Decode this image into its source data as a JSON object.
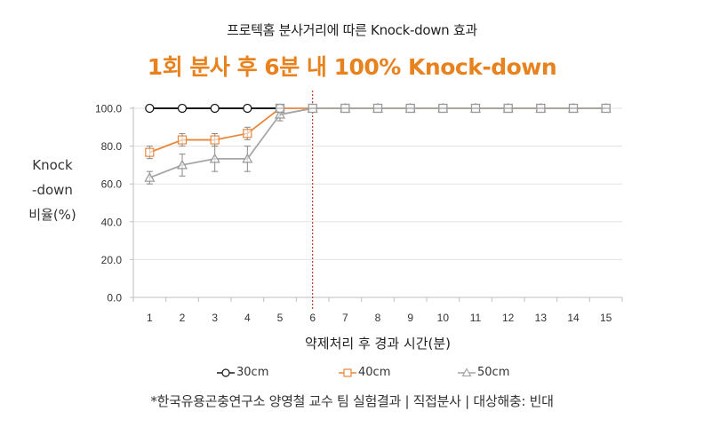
{
  "header": {
    "subtitle": "프로텍홈 분사거리에 따른 Knock-down 효과",
    "title": "1회 분사 후 6분 내 100% Knock-down"
  },
  "footnote": "*한국유용곤충연구소 양영철 교수 팀 실험결과 | 직접분사 | 대상해충: 빈대",
  "colors": {
    "accent": "#E8821E",
    "series_30cm": "#1a1a1a",
    "series_40cm": "#E8873A",
    "series_50cm": "#A6A6A6",
    "marker_gray": "#999999",
    "reference_line": "#C0392B",
    "grid": "#e3e3e3",
    "axis": "#bfbfbf"
  },
  "chart_data": {
    "type": "line",
    "title": "1회 분사 후 6분 내 100% Knock-down",
    "subtitle": "프로텍홈 분사거리에 따른 Knock-down 효과",
    "xlabel": "약제처리 후 경과 시간(분)",
    "ylabel_lines": [
      "Knock",
      "-down",
      "비율(%)"
    ],
    "ylabel": "Knock-down 비율(%)",
    "categories": [
      "1",
      "2",
      "3",
      "4",
      "5",
      "6",
      "7",
      "8",
      "9",
      "10",
      "11",
      "12",
      "13",
      "14",
      "15"
    ],
    "yticks": [
      "0.0",
      "20.0",
      "40.0",
      "60.0",
      "80.0",
      "100.0"
    ],
    "ylim": [
      0,
      100
    ],
    "grid": true,
    "legend_position": "bottom",
    "reference_line": {
      "x": "6",
      "style": "dotted",
      "color": "#C0392B"
    },
    "series": [
      {
        "name": "30cm",
        "marker": "circle",
        "values": [
          100,
          100,
          100,
          100,
          100,
          100,
          100,
          100,
          100,
          100,
          100,
          100,
          100,
          100,
          100
        ],
        "errors": [
          0,
          0,
          0,
          0,
          0,
          0,
          0,
          0,
          0,
          0,
          0,
          0,
          0,
          0,
          0
        ]
      },
      {
        "name": "40cm",
        "marker": "square",
        "values": [
          76.7,
          83.3,
          83.3,
          86.7,
          100,
          100,
          100,
          100,
          100,
          100,
          100,
          100,
          100,
          100,
          100
        ],
        "errors": [
          3.3,
          3.3,
          3.3,
          3.3,
          0,
          0,
          0,
          0,
          0,
          0,
          0,
          0,
          0,
          0,
          0
        ]
      },
      {
        "name": "50cm",
        "marker": "triangle",
        "values": [
          63.3,
          70.0,
          73.3,
          73.3,
          96.7,
          100,
          100,
          100,
          100,
          100,
          100,
          100,
          100,
          100,
          100
        ],
        "errors": [
          3.3,
          5.8,
          6.7,
          6.7,
          3.3,
          0,
          0,
          0,
          0,
          0,
          0,
          0,
          0,
          0,
          0
        ]
      }
    ]
  }
}
